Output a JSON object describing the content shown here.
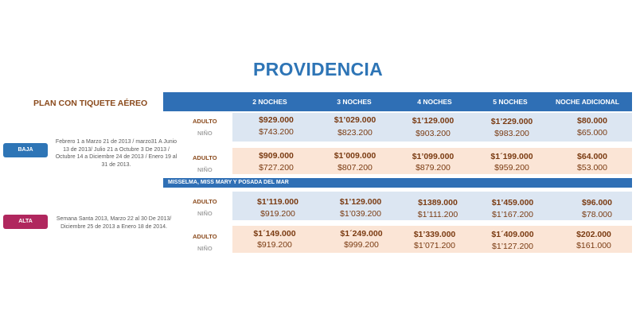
{
  "title": "PROVIDENCIA",
  "plan_label": "PLAN CON TIQUETE  AÉREO",
  "columns": [
    "2 NOCHES",
    "3 NOCHES",
    "4 NOCHES",
    "5 NOCHES",
    "NOCHE ADICIONAL"
  ],
  "row_labels": {
    "adulto": "ADULTO",
    "nino": "NIÑO"
  },
  "hotel_group": "MISSELMA,  MISS  MARY  Y POSADA  DEL MAR",
  "seasons": [
    {
      "name": "BAJA",
      "color": "#2e75b6",
      "dates": "Febrero  1 a  Marzo 21 de 2013 / marzo31 A Junio 13 de 2013/ Julio 21 a Octubre 3 De 2013 / Octubre 14 a Diciembre  24 de 2013 / Enero 19 al 31 de 2013.",
      "blocks": [
        {
          "adulto": [
            "$929.000",
            "$1’029.000",
            "$1’129.000",
            "$1’229.000",
            "$80.000"
          ],
          "nino": [
            "$743.200",
            "$823.200",
            "$903.200",
            "$983.200",
            "$65.000"
          ]
        },
        {
          "adulto": [
            "$909.000",
            "$1’009.000",
            "$1’099.000",
            "$1´199.000",
            "$64.000"
          ],
          "nino": [
            "$727.200",
            "$807.200",
            "$879.200",
            "$959.200",
            "$53.000"
          ]
        }
      ]
    },
    {
      "name": "ALTA",
      "color": "#b0275e",
      "dates": "Semana  Santa  2013, Marzo 22 al 30 De 2013/ Diciembre  25 de 2013 a Enero 18 de 2014.",
      "blocks": [
        {
          "adulto": [
            "$1’119.000",
            "$1’129.000",
            "$1389.000",
            "$1’459.000",
            "$96.000"
          ],
          "nino": [
            "$919.200",
            "$1’039.200",
            "$1’111.200",
            "$1’167.200",
            "$78.000"
          ]
        },
        {
          "adulto": [
            "$1´149.000",
            "$1´249.000",
            "$1’339.000",
            "$1´409.000",
            "$202.000"
          ],
          "nino": [
            "$919.200",
            "$999.200",
            "$1’071.200",
            "$1’127.200",
            "$161.000"
          ]
        }
      ]
    }
  ]
}
